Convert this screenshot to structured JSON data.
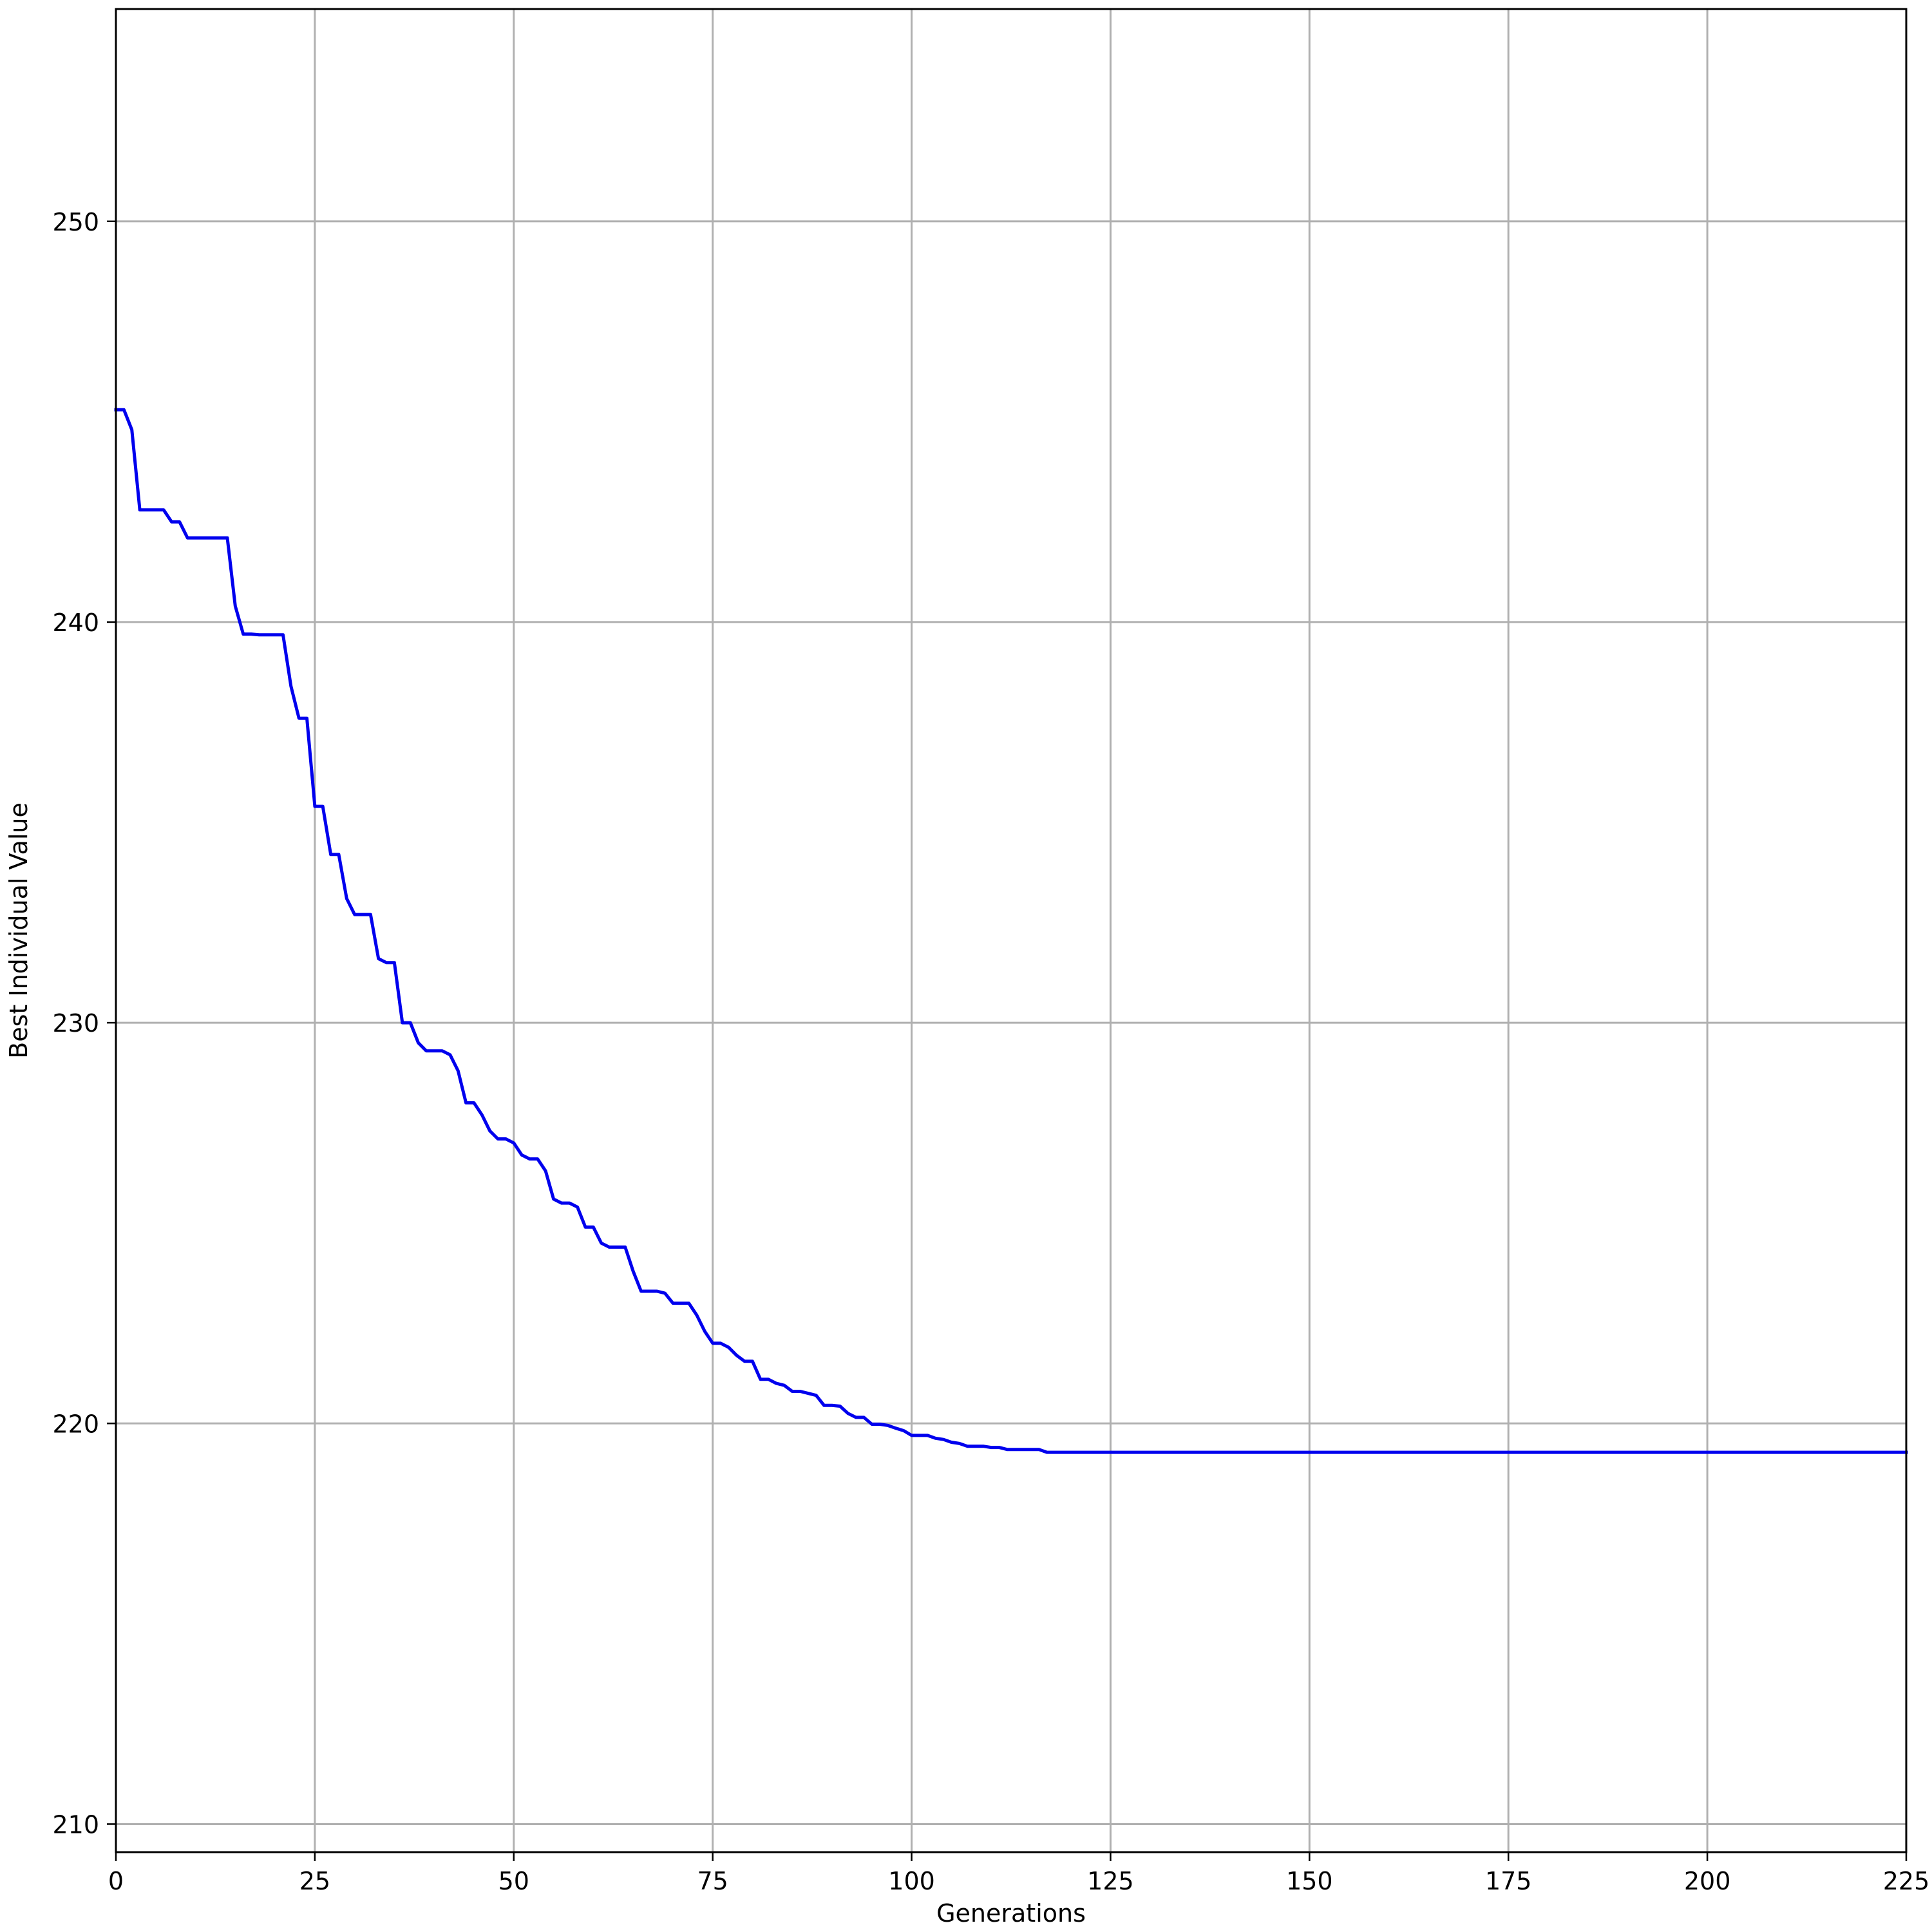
{
  "chart_data": {
    "type": "line",
    "title": "",
    "xlabel": "Generations",
    "ylabel": "Best Individual Value",
    "xlim": [
      0,
      225
    ],
    "ylim": [
      209.3,
      255.3
    ],
    "x_ticks": [
      0,
      25,
      50,
      75,
      100,
      125,
      150,
      175,
      200,
      225
    ],
    "y_ticks": [
      210,
      220,
      230,
      240,
      250
    ],
    "grid": true,
    "legend": "none",
    "series": [
      {
        "color": "#0000ee",
        "points": [
          [
            0,
            245.3
          ],
          [
            1,
            245.3
          ],
          [
            2,
            244.8
          ],
          [
            3,
            242.8
          ],
          [
            4,
            242.8
          ],
          [
            5,
            242.8
          ],
          [
            6,
            242.8
          ],
          [
            7,
            242.5
          ],
          [
            8,
            242.5
          ],
          [
            9,
            242.1
          ],
          [
            10,
            242.1
          ],
          [
            11,
            242.1
          ],
          [
            12,
            242.1
          ],
          [
            13,
            242.1
          ],
          [
            14,
            242.1
          ],
          [
            15,
            240.4
          ],
          [
            16,
            239.7
          ],
          [
            17,
            239.7
          ],
          [
            18,
            239.68
          ],
          [
            19,
            239.68
          ],
          [
            20,
            239.68
          ],
          [
            21,
            239.68
          ],
          [
            22,
            238.4
          ],
          [
            23,
            237.6
          ],
          [
            24,
            237.6
          ],
          [
            25,
            235.4
          ],
          [
            26,
            235.4
          ],
          [
            27,
            234.2
          ],
          [
            28,
            234.2
          ],
          [
            29,
            233.1
          ],
          [
            30,
            232.7
          ],
          [
            31,
            232.7
          ],
          [
            32,
            232.7
          ],
          [
            33,
            231.6
          ],
          [
            34,
            231.5
          ],
          [
            35,
            231.5
          ],
          [
            36,
            230.0
          ],
          [
            37,
            230.0
          ],
          [
            38,
            229.5
          ],
          [
            39,
            229.3
          ],
          [
            40,
            229.3
          ],
          [
            41,
            229.3
          ],
          [
            42,
            229.2
          ],
          [
            43,
            228.8
          ],
          [
            44,
            228.0
          ],
          [
            45,
            228.0
          ],
          [
            46,
            227.7
          ],
          [
            47,
            227.3
          ],
          [
            48,
            227.1
          ],
          [
            49,
            227.1
          ],
          [
            50,
            227.0
          ],
          [
            51,
            226.7
          ],
          [
            52,
            226.6
          ],
          [
            53,
            226.6
          ],
          [
            54,
            226.3
          ],
          [
            55,
            225.6
          ],
          [
            56,
            225.5
          ],
          [
            57,
            225.5
          ],
          [
            58,
            225.4
          ],
          [
            59,
            224.9
          ],
          [
            60,
            224.9
          ],
          [
            61,
            224.5
          ],
          [
            62,
            224.4
          ],
          [
            63,
            224.4
          ],
          [
            64,
            224.4
          ],
          [
            65,
            223.8
          ],
          [
            66,
            223.3
          ],
          [
            67,
            223.3
          ],
          [
            68,
            223.3
          ],
          [
            69,
            223.25
          ],
          [
            70,
            223.0
          ],
          [
            71,
            223.0
          ],
          [
            72,
            223.0
          ],
          [
            73,
            222.7
          ],
          [
            74,
            222.3
          ],
          [
            75,
            222.0
          ],
          [
            76,
            222.0
          ],
          [
            77,
            221.9
          ],
          [
            78,
            221.7
          ],
          [
            79,
            221.55
          ],
          [
            80,
            221.55
          ],
          [
            81,
            221.1
          ],
          [
            82,
            221.1
          ],
          [
            83,
            221.0
          ],
          [
            84,
            220.95
          ],
          [
            85,
            220.8
          ],
          [
            86,
            220.8
          ],
          [
            87,
            220.75
          ],
          [
            88,
            220.7
          ],
          [
            89,
            220.45
          ],
          [
            90,
            220.45
          ],
          [
            91,
            220.43
          ],
          [
            92,
            220.25
          ],
          [
            93,
            220.15
          ],
          [
            94,
            220.15
          ],
          [
            95,
            219.98
          ],
          [
            96,
            219.98
          ],
          [
            97,
            219.95
          ],
          [
            98,
            219.88
          ],
          [
            99,
            219.82
          ],
          [
            100,
            219.7
          ],
          [
            101,
            219.7
          ],
          [
            102,
            219.7
          ],
          [
            103,
            219.63
          ],
          [
            104,
            219.6
          ],
          [
            105,
            219.53
          ],
          [
            106,
            219.5
          ],
          [
            107,
            219.43
          ],
          [
            108,
            219.43
          ],
          [
            109,
            219.43
          ],
          [
            110,
            219.4
          ],
          [
            111,
            219.4
          ],
          [
            112,
            219.35
          ],
          [
            113,
            219.35
          ],
          [
            114,
            219.35
          ],
          [
            115,
            219.35
          ],
          [
            116,
            219.35
          ],
          [
            117,
            219.28
          ],
          [
            118,
            219.28
          ],
          [
            120,
            219.28
          ],
          [
            130,
            219.28
          ],
          [
            140,
            219.28
          ],
          [
            150,
            219.28
          ],
          [
            160,
            219.28
          ],
          [
            170,
            219.28
          ],
          [
            180,
            219.28
          ],
          [
            190,
            219.28
          ],
          [
            200,
            219.28
          ],
          [
            210,
            219.28
          ],
          [
            220,
            219.28
          ],
          [
            225,
            219.28
          ]
        ]
      }
    ]
  }
}
